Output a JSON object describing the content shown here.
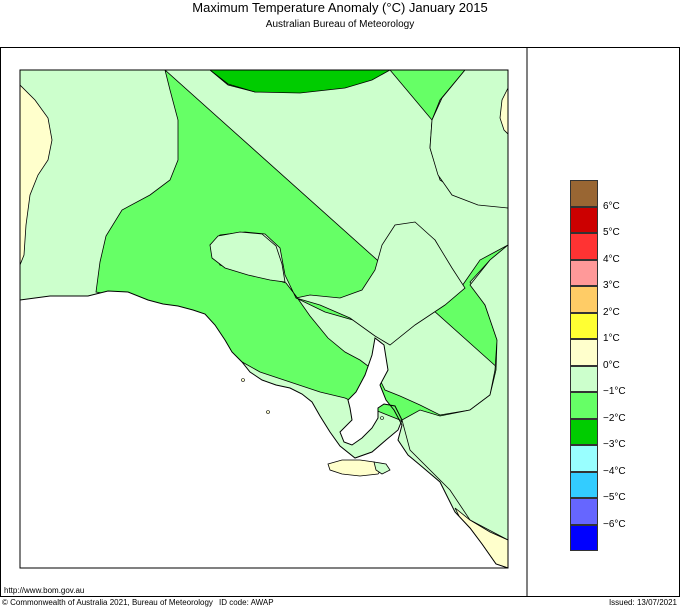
{
  "header": {
    "title": "Maximum Temperature Anomaly (°C)  January 2015",
    "subtitle": "Australian Bureau of Meteorology"
  },
  "legend": {
    "colors": [
      "#996633",
      "#cc0000",
      "#ff3333",
      "#ff9999",
      "#ffcc66",
      "#ffff33",
      "#ffffcc",
      "#ccffcc",
      "#66ff66",
      "#00cc00",
      "#99ffff",
      "#33ccff",
      "#6666ff",
      "#0000ff"
    ],
    "tick_labels": [
      "6°C",
      "5°C",
      "4°C",
      "3°C",
      "2°C",
      "1°C",
      "0°C",
      "−1°C",
      "−2°C",
      "−3°C",
      "−4°C",
      "−5°C",
      "−6°C"
    ]
  },
  "map": {
    "land_colors": {
      "anomaly_0_to_1": "#ffffcc",
      "anomaly_minus1_to_0": "#ccffcc",
      "anomaly_minus2_to_minus1": "#66ff66",
      "anomaly_minus3_to_minus2": "#00cc00"
    }
  },
  "footer": {
    "url": "http://www.bom.gov.au",
    "copyright": "© Commonwealth of Australia 2021, Bureau of Meteorology",
    "id_code": "ID code: AWAP",
    "issued": "Issued: 13/07/2021"
  }
}
